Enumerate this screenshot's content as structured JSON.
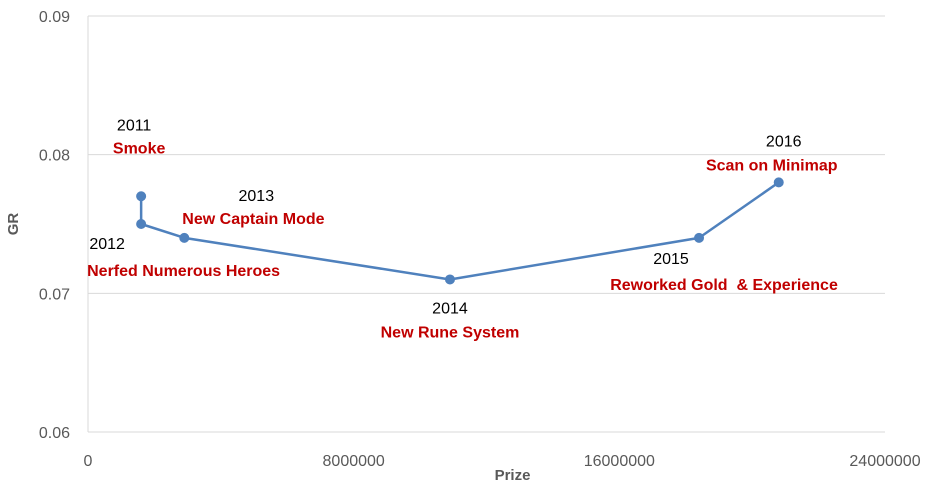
{
  "chart_data": {
    "type": "scatter",
    "xlabel": "Prize",
    "ylabel": "GR",
    "xlim": [
      0,
      24000000
    ],
    "ylim": [
      0.06,
      0.09
    ],
    "x_ticks": [
      "0",
      "8000000",
      "16000000",
      "24000000"
    ],
    "y_ticks": [
      "0.06",
      "0.07",
      "0.08",
      "0.09"
    ],
    "grid": "horizontal",
    "line_color": "#4f81bd",
    "marker_color": "#4f81bd",
    "annotation_year_color": "#000000",
    "annotation_event_color": "#c00000",
    "series": [
      {
        "points": [
          {
            "x": 1600000,
            "y": 0.077,
            "year": "2011",
            "event": "Smoke"
          },
          {
            "x": 1600000,
            "y": 0.075,
            "year": "2012",
            "event": "Nerfed Numerous Heroes"
          },
          {
            "x": 2900000,
            "y": 0.074,
            "year": "2013",
            "event": "New Captain Mode"
          },
          {
            "x": 10900000,
            "y": 0.071,
            "year": "2014",
            "event": "New Rune System"
          },
          {
            "x": 18400000,
            "y": 0.074,
            "year": "2015",
            "event": "Reworked Gold  & Experience"
          },
          {
            "x": 20800000,
            "y": 0.078,
            "year": "2016",
            "event": "Scan on Minimap"
          }
        ]
      }
    ]
  }
}
